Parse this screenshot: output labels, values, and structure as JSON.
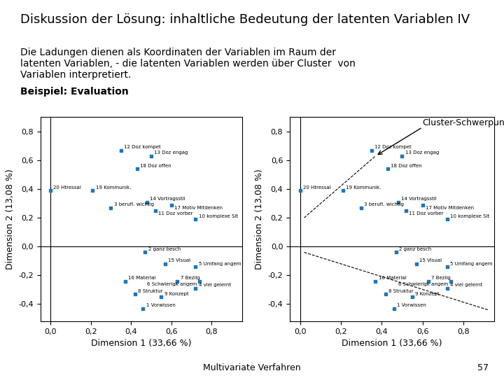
{
  "title": "Diskussion der Lösung: inhaltliche Bedeutung der latenten Variablen IV",
  "subtitle": "Die Ladungen dienen als Koordinaten der Variablen im Raum der\nlatenten Variablen, - die latenten Variablen werden über Cluster  von\nVariablen interpretiert.",
  "annotations": [
    "Beispiel: Evaluation",
    "Multivariate Verfahren",
    "57"
  ],
  "chart_data": [
    {
      "type": "scatter",
      "xlabel": "Dimension 1 (33,66 %)",
      "ylabel": "Dimension 2 (13,08 %)",
      "x": [
        0.0,
        0.21,
        0.35,
        0.5,
        0.43,
        0.3,
        0.48,
        0.6,
        0.52,
        0.72,
        0.47,
        0.57,
        0.72,
        0.37,
        0.63,
        0.74,
        0.72,
        0.42,
        0.55,
        0.46
      ],
      "values": [
        0.39,
        0.39,
        0.67,
        0.63,
        0.54,
        0.27,
        0.31,
        0.29,
        0.25,
        0.19,
        -0.04,
        -0.12,
        -0.14,
        -0.24,
        -0.24,
        -0.24,
        -0.29,
        -0.33,
        -0.35,
        -0.43
      ],
      "point_labels": [
        "20 Htressal",
        "19 Kommunik.",
        "12 Doz kompet",
        "13 Doz engag",
        "18 Doz offen",
        "3 berufl. wichtig",
        "14 Vortragsstil",
        "17 Motiv Mitdenken",
        "11 Doz vorber",
        "10 komplexe Sit",
        "2 ganz besch",
        "15 Visual",
        "5 Umfang angem",
        "16 Material",
        "7 Beziig",
        "6 Schwierigk angem",
        "4 viel gelernt",
        "8 Struktur",
        "9 Konzept",
        "1 Vorwissen"
      ],
      "marker": "square",
      "reference_lines": {
        "x": 0,
        "y": 0,
        "color": "black"
      },
      "xlim": [
        -0.05,
        0.95
      ],
      "ylim": [
        -0.52,
        0.9
      ],
      "xticks": [
        {
          "value": 0.0,
          "label": "0,0"
        },
        {
          "value": 0.2,
          "label": "0,2"
        },
        {
          "value": 0.4,
          "label": "0,4"
        },
        {
          "value": 0.6,
          "label": "0,6"
        },
        {
          "value": 0.8,
          "label": "0,8"
        }
      ],
      "yticks": [
        {
          "value": -0.4,
          "label": "-0,4"
        },
        {
          "value": -0.2,
          "label": "-0,2"
        },
        {
          "value": 0.0,
          "label": "0,0"
        },
        {
          "value": 0.2,
          "label": "0,2"
        },
        {
          "value": 0.4,
          "label": "0,4"
        },
        {
          "value": 0.6,
          "label": "0,6"
        },
        {
          "value": 0.8,
          "label": "0,8"
        }
      ]
    },
    {
      "type": "scatter",
      "xlabel": "Dimension 1 (33,66 %)",
      "ylabel": "Dimension 2 (13,08 %)",
      "x": [
        0.0,
        0.21,
        0.35,
        0.5,
        0.43,
        0.3,
        0.48,
        0.6,
        0.52,
        0.72,
        0.47,
        0.57,
        0.72,
        0.37,
        0.63,
        0.74,
        0.72,
        0.42,
        0.55,
        0.46
      ],
      "values": [
        0.39,
        0.39,
        0.67,
        0.63,
        0.54,
        0.27,
        0.31,
        0.29,
        0.25,
        0.19,
        -0.04,
        -0.12,
        -0.14,
        -0.24,
        -0.24,
        -0.24,
        -0.29,
        -0.33,
        -0.35,
        -0.43
      ],
      "point_labels": [
        "20 Htressal",
        "19 Kommunik.",
        "12 Doz kompet",
        "13 Doz engag",
        "18 Doz offen",
        "3 berufl. wichtig",
        "14 Vortragsstil",
        "17 Motiv Mitdenken",
        "11 Doz vorber",
        "10 komplexe Sit",
        "2 ganz besch",
        "15 Visual",
        "5 Umfang angem",
        "16 Material",
        "7 Beziig",
        "6 Schwierigk angem",
        "4 viel gelernt",
        "8 Struktur",
        "9 Konzept",
        "1 Vorwissen"
      ],
      "marker": "square",
      "reference_lines": {
        "x": 0,
        "y": 0,
        "color": "black"
      },
      "lines": [
        {
          "x": [
            0.02,
            0.37
          ],
          "values": [
            0.2,
            0.63
          ],
          "line_style": "dashed",
          "color": "black"
        },
        {
          "x": [
            0.02,
            0.92
          ],
          "values": [
            -0.04,
            -0.44
          ],
          "line_style": "dashed",
          "color": "black"
        }
      ],
      "annotations": [
        {
          "text": "Cluster-Schwerpunkt",
          "x": 0.6,
          "y": 0.83,
          "arrow_x": 0.37,
          "arrow_y": 0.63
        }
      ],
      "xlim": [
        -0.05,
        0.95
      ],
      "ylim": [
        -0.52,
        0.9
      ],
      "xticks": [
        {
          "value": 0.0,
          "label": "0,0"
        },
        {
          "value": 0.2,
          "label": "0,2"
        },
        {
          "value": 0.4,
          "label": "0,4"
        },
        {
          "value": 0.6,
          "label": "0,6"
        },
        {
          "value": 0.8,
          "label": "0,8"
        }
      ],
      "yticks": [
        {
          "value": -0.4,
          "label": "-0,4"
        },
        {
          "value": -0.2,
          "label": "-0,2"
        },
        {
          "value": 0.0,
          "label": "0,0"
        },
        {
          "value": 0.2,
          "label": "0,2"
        },
        {
          "value": 0.4,
          "label": "0,4"
        },
        {
          "value": 0.6,
          "label": "0,6"
        },
        {
          "value": 0.8,
          "label": "0,8"
        }
      ]
    }
  ]
}
